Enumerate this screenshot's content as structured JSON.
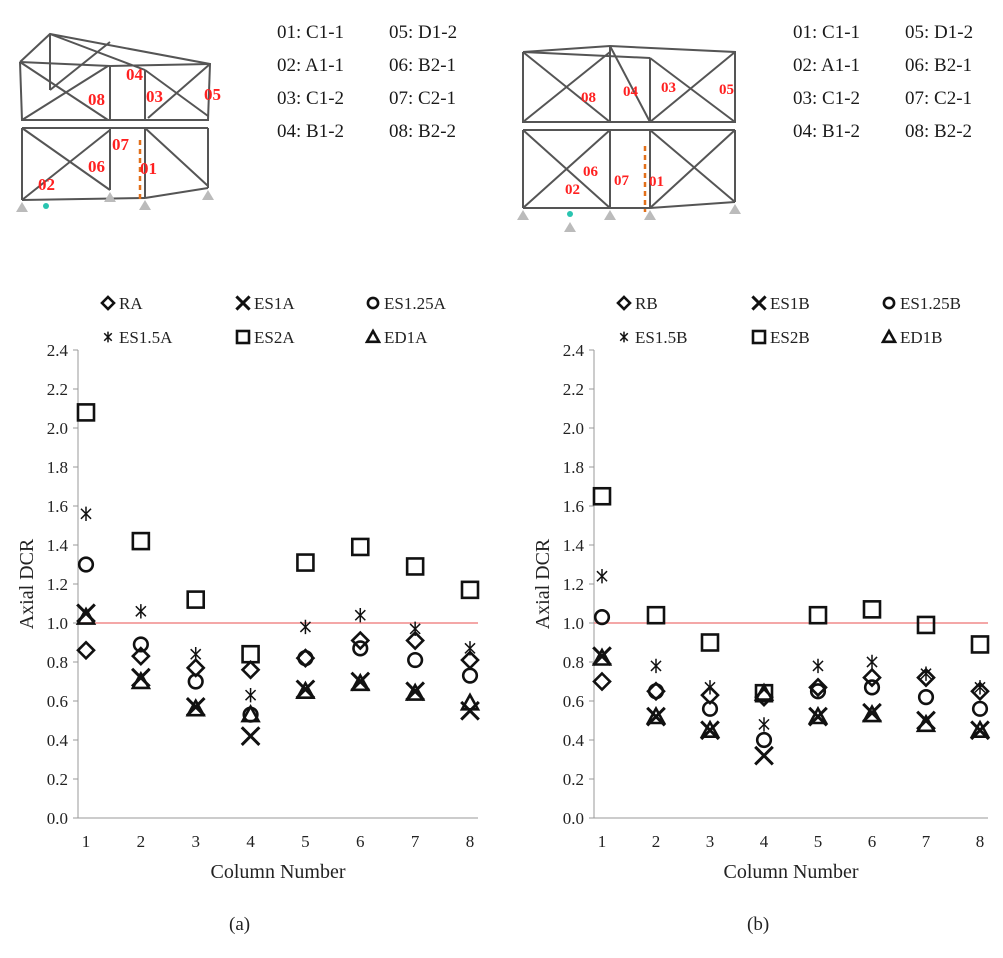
{
  "panel_a": {
    "label": "(a)",
    "frame_labels": [
      "01",
      "02",
      "03",
      "04",
      "05",
      "06",
      "07",
      "08"
    ],
    "column_ids": [
      "01: C1-1",
      "02: A1-1",
      "03: C1-2",
      "04: B1-2",
      "05: D1-2",
      "06: B2-1",
      "07: C2-1",
      "08: B2-2"
    ]
  },
  "panel_b": {
    "label": "(b)",
    "frame_labels": [
      "01",
      "02",
      "03",
      "04",
      "05",
      "06",
      "07",
      "08"
    ],
    "column_ids": [
      "01: C1-1",
      "02: A1-1",
      "03: C1-2",
      "04: B1-2",
      "05: D1-2",
      "06: B2-1",
      "07: C2-1",
      "08: B2-2"
    ]
  },
  "colors": {
    "label_red": "#ff2020",
    "limit_line": "#f08a8a",
    "marker": "#111111",
    "frame": "#555555"
  },
  "chart_data": [
    {
      "type": "scatter",
      "xlabel": "Column Number",
      "ylabel": "Axial DCR",
      "x": [
        1,
        2,
        3,
        4,
        5,
        6,
        7,
        8
      ],
      "xticks": [
        "1",
        "2",
        "3",
        "4",
        "5",
        "6",
        "7",
        "8"
      ],
      "ylim": [
        0,
        2.4
      ],
      "yticks": [
        "0.0",
        "0.2",
        "0.4",
        "0.6",
        "0.8",
        "1.0",
        "1.2",
        "1.4",
        "1.6",
        "1.8",
        "2.0",
        "2.2",
        "2.4"
      ],
      "reference_line": 1.0,
      "legend": "top",
      "series": [
        {
          "name": "RA",
          "marker": "diamond",
          "values": [
            0.86,
            0.83,
            0.77,
            0.76,
            0.82,
            0.91,
            0.91,
            0.81
          ]
        },
        {
          "name": "ES1A",
          "marker": "x",
          "values": [
            1.05,
            0.72,
            0.57,
            0.42,
            0.66,
            0.7,
            0.65,
            0.55
          ]
        },
        {
          "name": "ES1.25A",
          "marker": "circle",
          "values": [
            1.3,
            0.89,
            0.7,
            0.53,
            0.82,
            0.87,
            0.81,
            0.73
          ]
        },
        {
          "name": "ES1.5A",
          "marker": "asterisk",
          "values": [
            1.56,
            1.06,
            0.84,
            0.63,
            0.98,
            1.04,
            0.97,
            0.87
          ]
        },
        {
          "name": "ES2A",
          "marker": "square",
          "values": [
            2.08,
            1.42,
            1.12,
            0.84,
            1.31,
            1.39,
            1.29,
            1.17
          ]
        },
        {
          "name": "ED1A",
          "marker": "triangle",
          "values": [
            1.03,
            0.7,
            0.56,
            0.53,
            0.65,
            0.69,
            0.64,
            0.59
          ]
        }
      ]
    },
    {
      "type": "scatter",
      "xlabel": "Column Number",
      "ylabel": "Axial DCR",
      "x": [
        1,
        2,
        3,
        4,
        5,
        6,
        7,
        8
      ],
      "xticks": [
        "1",
        "2",
        "3",
        "4",
        "5",
        "6",
        "7",
        "8"
      ],
      "ylim": [
        0,
        2.4
      ],
      "yticks": [
        "0.0",
        "0.2",
        "0.4",
        "0.6",
        "0.8",
        "1.0",
        "1.2",
        "1.4",
        "1.6",
        "1.8",
        "2.0",
        "2.2",
        "2.4"
      ],
      "reference_line": 1.0,
      "legend": "top",
      "series": [
        {
          "name": "RB",
          "marker": "diamond",
          "values": [
            0.7,
            0.65,
            0.63,
            0.62,
            0.67,
            0.72,
            0.72,
            0.65
          ]
        },
        {
          "name": "ES1B",
          "marker": "x",
          "values": [
            0.83,
            0.52,
            0.45,
            0.32,
            0.52,
            0.54,
            0.5,
            0.45
          ]
        },
        {
          "name": "ES1.25B",
          "marker": "circle",
          "values": [
            1.03,
            0.65,
            0.56,
            0.4,
            0.65,
            0.67,
            0.62,
            0.56
          ]
        },
        {
          "name": "ES1.5B",
          "marker": "asterisk",
          "values": [
            1.24,
            0.78,
            0.67,
            0.48,
            0.78,
            0.8,
            0.74,
            0.67
          ]
        },
        {
          "name": "ES2B",
          "marker": "square",
          "values": [
            1.65,
            1.04,
            0.9,
            0.64,
            1.04,
            1.07,
            0.99,
            0.89
          ]
        },
        {
          "name": "ED1B",
          "marker": "triangle",
          "values": [
            0.82,
            0.52,
            0.45,
            0.64,
            0.52,
            0.53,
            0.48,
            0.45
          ]
        }
      ]
    }
  ]
}
